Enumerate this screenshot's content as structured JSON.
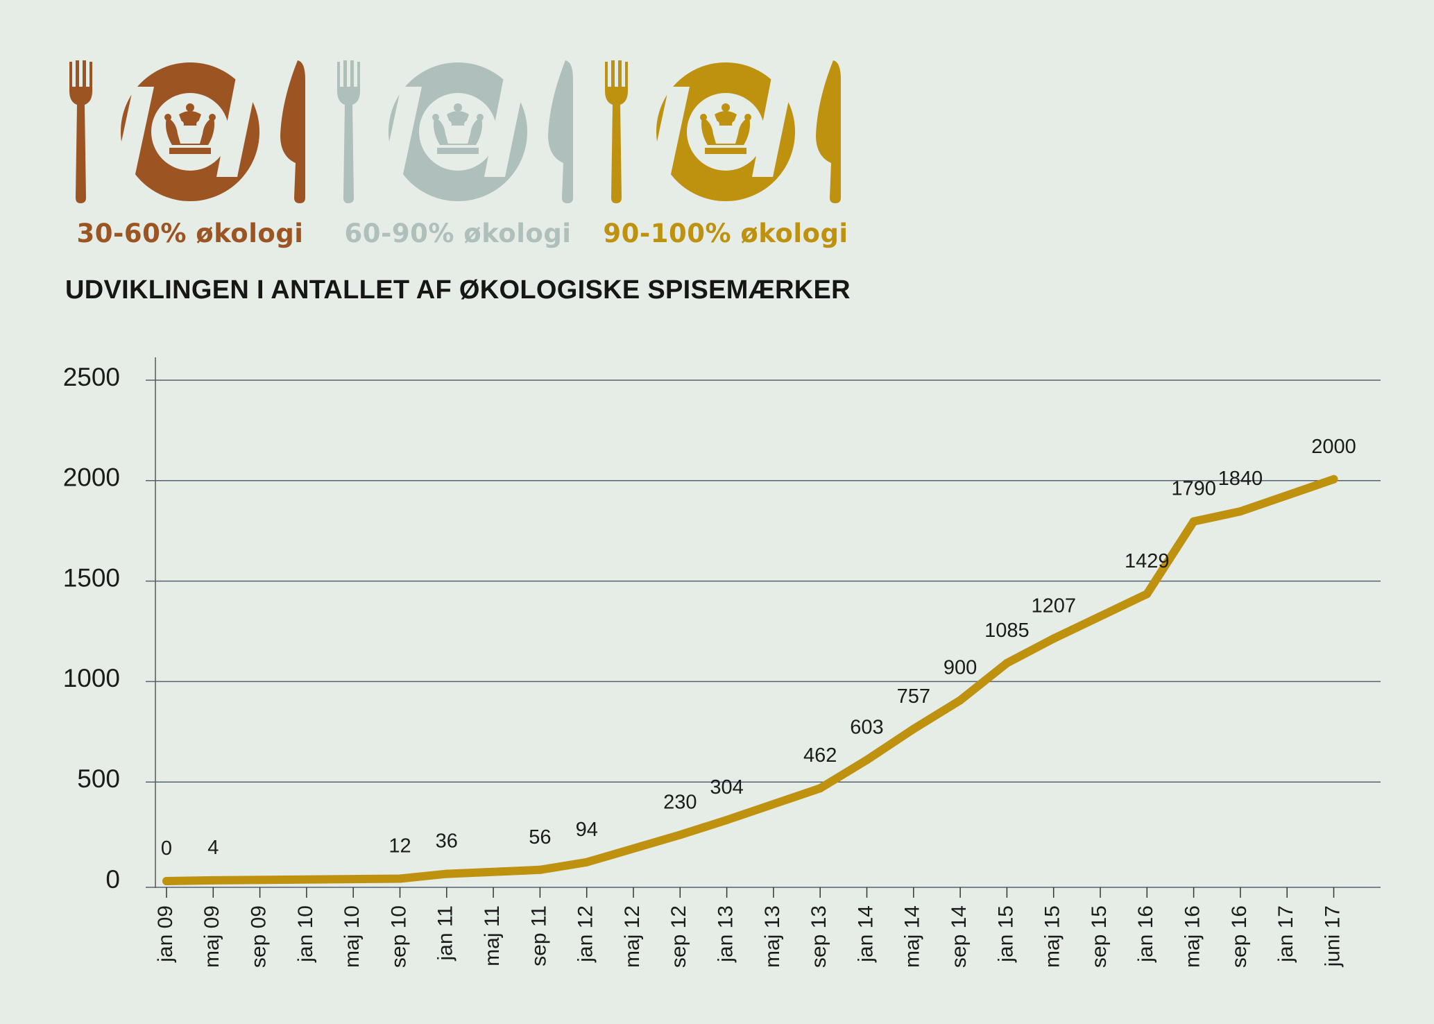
{
  "badges": [
    {
      "label": "30-60% økologi",
      "color": "#9c5522",
      "icon": "fork-plate-crown-knife-icon"
    },
    {
      "label": "60-90% økologi",
      "color": "#aebfbc",
      "icon": "fork-plate-crown-knife-icon"
    },
    {
      "label": "90-100% økologi",
      "color": "#be910f",
      "icon": "fork-plate-crown-knife-icon"
    }
  ],
  "chart_data": {
    "type": "line",
    "title": "UDVIKLINGEN I ANTALLET AF ØKOLOGISKE SPISEMÆRKER",
    "xlabel": "",
    "ylabel": "",
    "ylim": [
      0,
      2500
    ],
    "yticks": [
      0,
      500,
      1000,
      1500,
      2000,
      2500
    ],
    "xticks": [
      "jan 09",
      "maj 09",
      "sep 09",
      "jan 10",
      "maj 10",
      "sep 10",
      "jan 11",
      "maj 11",
      "sep 11",
      "jan 12",
      "maj 12",
      "sep 12",
      "jan 13",
      "maj 13",
      "sep 13",
      "jan 14",
      "maj 14",
      "sep 14",
      "jan 15",
      "maj 15",
      "sep 15",
      "jan 16",
      "maj 16",
      "sep 16",
      "jan 17",
      "juni 17"
    ],
    "grid": true,
    "line_color": "#be910f",
    "points": [
      {
        "x": "jan 09",
        "y": 0
      },
      {
        "x": "maj 09",
        "y": 4
      },
      {
        "x": "sep 10",
        "y": 12
      },
      {
        "x": "jan 11",
        "y": 36
      },
      {
        "x": "sep 11",
        "y": 56
      },
      {
        "x": "jan 12",
        "y": 94
      },
      {
        "x": "sep 12",
        "y": 230
      },
      {
        "x": "jan 13",
        "y": 304
      },
      {
        "x": "sep 13",
        "y": 462
      },
      {
        "x": "jan 14",
        "y": 603
      },
      {
        "x": "maj 14",
        "y": 757
      },
      {
        "x": "sep 14",
        "y": 900
      },
      {
        "x": "jan 15",
        "y": 1085
      },
      {
        "x": "maj 15",
        "y": 1207
      },
      {
        "x": "jan 16",
        "y": 1429
      },
      {
        "x": "maj 16",
        "y": 1790
      },
      {
        "x": "sep 16",
        "y": 1840
      },
      {
        "x": "juni 17",
        "y": 2000
      }
    ]
  }
}
